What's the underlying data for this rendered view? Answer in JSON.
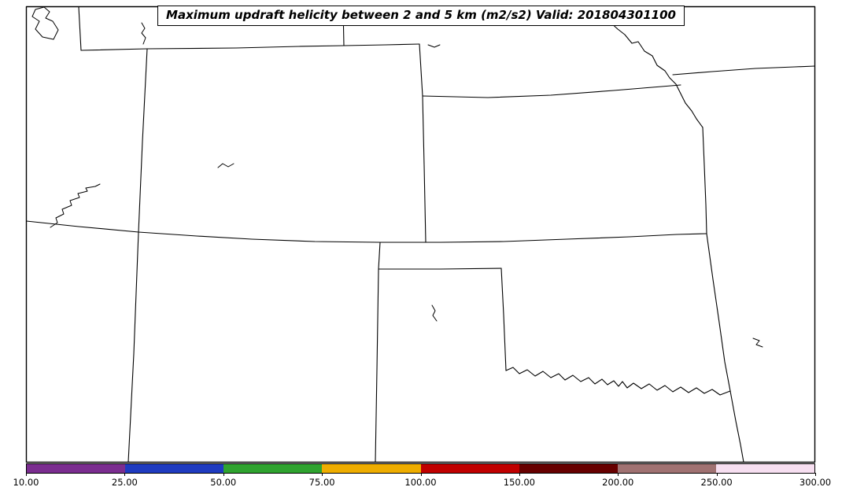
{
  "title": "Maximum updraft helicity between 2 and 5 km (m2/s2) Valid: 201804301100",
  "colorbar": {
    "levels": [
      10,
      25,
      50,
      75,
      100,
      150,
      200,
      250,
      300
    ],
    "tick_labels": [
      "10.00",
      "25.00",
      "50.00",
      "75.00",
      "100.00",
      "150.00",
      "200.00",
      "250.00",
      "300.00"
    ],
    "colors": [
      "#7b2d90",
      "#1f3bc0",
      "#2fa32f",
      "#eead00",
      "#c00000",
      "#670000",
      "#a07272",
      "#f7dff1"
    ]
  },
  "map": {
    "background_color": "#ffffff",
    "line_color": "#000000"
  },
  "chart_data": {
    "type": "heatmap",
    "title": "Maximum updraft helicity between 2 and 5 km (m2/s2) Valid: 201804301100",
    "colorbar_levels": [
      10,
      25,
      50,
      75,
      100,
      150,
      200,
      250,
      300
    ],
    "colorbar_colors": [
      "#7b2d90",
      "#1f3bc0",
      "#2fa32f",
      "#eead00",
      "#c00000",
      "#670000",
      "#a07272",
      "#f7dff1"
    ],
    "shaded_regions_visible": 0,
    "legend_position": "bottom"
  }
}
